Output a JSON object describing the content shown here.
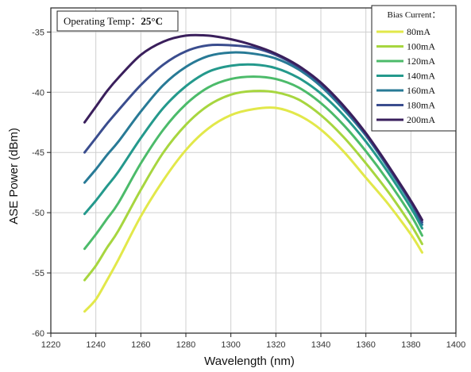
{
  "chart_data": {
    "type": "line",
    "xlabel": "Wavelength (nm)",
    "ylabel": "ASE Power (dBm)",
    "xlim": [
      1220,
      1400
    ],
    "ylim": [
      -60,
      -33
    ],
    "xticks": [
      1220,
      1240,
      1260,
      1280,
      1300,
      1320,
      1340,
      1360,
      1380,
      1400
    ],
    "yticks": [
      -35,
      -40,
      -45,
      -50,
      -55,
      -60
    ],
    "grid": true,
    "annotation": {
      "text": "Operating Temp：",
      "value": "25°C"
    },
    "legend": {
      "title": "Bias Current：",
      "placement": "top-right"
    },
    "series": [
      {
        "name": "80mA",
        "color": "#e2e84a",
        "x": [
          1235,
          1240,
          1245,
          1250,
          1260,
          1270,
          1280,
          1290,
          1300,
          1310,
          1320,
          1330,
          1340,
          1350,
          1360,
          1370,
          1380,
          1385
        ],
        "y": [
          -58.2,
          -57.2,
          -55.6,
          -53.9,
          -50.3,
          -47.3,
          -44.8,
          -43.0,
          -41.9,
          -41.4,
          -41.3,
          -41.9,
          -43.1,
          -44.9,
          -47.1,
          -49.3,
          -51.8,
          -53.3
        ]
      },
      {
        "name": "100mA",
        "color": "#a7d63f",
        "x": [
          1235,
          1240,
          1245,
          1250,
          1260,
          1270,
          1280,
          1290,
          1300,
          1310,
          1320,
          1330,
          1340,
          1350,
          1360,
          1370,
          1380,
          1385
        ],
        "y": [
          -55.6,
          -54.4,
          -52.9,
          -51.5,
          -48.1,
          -45.0,
          -42.7,
          -41.1,
          -40.2,
          -39.9,
          -40.0,
          -40.6,
          -41.9,
          -43.7,
          -45.9,
          -48.3,
          -51.0,
          -52.6
        ]
      },
      {
        "name": "120mA",
        "color": "#4cbb6a",
        "x": [
          1235,
          1240,
          1245,
          1250,
          1260,
          1270,
          1280,
          1290,
          1300,
          1310,
          1320,
          1330,
          1340,
          1350,
          1360,
          1370,
          1380,
          1385
        ],
        "y": [
          -53.0,
          -51.8,
          -50.5,
          -49.2,
          -45.9,
          -43.1,
          -41.0,
          -39.6,
          -38.9,
          -38.7,
          -38.9,
          -39.6,
          -40.9,
          -42.7,
          -44.9,
          -47.4,
          -50.2,
          -51.9
        ]
      },
      {
        "name": "140mA",
        "color": "#24998c",
        "x": [
          1235,
          1240,
          1245,
          1250,
          1260,
          1270,
          1280,
          1290,
          1300,
          1310,
          1320,
          1330,
          1340,
          1350,
          1360,
          1370,
          1380,
          1385
        ],
        "y": [
          -50.1,
          -49.0,
          -47.8,
          -46.6,
          -43.8,
          -41.3,
          -39.5,
          -38.3,
          -37.8,
          -37.7,
          -38.0,
          -38.8,
          -40.1,
          -41.9,
          -44.1,
          -46.7,
          -49.6,
          -51.3
        ]
      },
      {
        "name": "160mA",
        "color": "#287a96",
        "x": [
          1235,
          1240,
          1245,
          1250,
          1260,
          1270,
          1280,
          1290,
          1300,
          1310,
          1320,
          1330,
          1340,
          1350,
          1360,
          1370,
          1380,
          1385
        ],
        "y": [
          -47.5,
          -46.4,
          -45.2,
          -44.1,
          -41.6,
          -39.4,
          -37.9,
          -37.0,
          -36.7,
          -36.8,
          -37.2,
          -38.1,
          -39.5,
          -41.4,
          -43.6,
          -46.3,
          -49.2,
          -51.0
        ]
      },
      {
        "name": "180mA",
        "color": "#3a4d8e",
        "x": [
          1235,
          1240,
          1245,
          1250,
          1260,
          1270,
          1280,
          1290,
          1300,
          1310,
          1320,
          1330,
          1340,
          1350,
          1360,
          1370,
          1380,
          1385
        ],
        "y": [
          -45.0,
          -43.8,
          -42.6,
          -41.5,
          -39.4,
          -37.7,
          -36.6,
          -36.1,
          -36.1,
          -36.3,
          -36.9,
          -37.9,
          -39.3,
          -41.2,
          -43.5,
          -46.2,
          -49.1,
          -50.8
        ]
      },
      {
        "name": "200mA",
        "color": "#3a1f5c",
        "x": [
          1235,
          1240,
          1245,
          1250,
          1260,
          1270,
          1280,
          1290,
          1300,
          1310,
          1320,
          1330,
          1340,
          1350,
          1360,
          1370,
          1380,
          1385
        ],
        "y": [
          -42.5,
          -41.2,
          -39.9,
          -38.8,
          -36.9,
          -35.8,
          -35.3,
          -35.3,
          -35.6,
          -36.1,
          -36.8,
          -37.8,
          -39.2,
          -41.1,
          -43.4,
          -46.1,
          -49.0,
          -50.6
        ]
      }
    ]
  }
}
